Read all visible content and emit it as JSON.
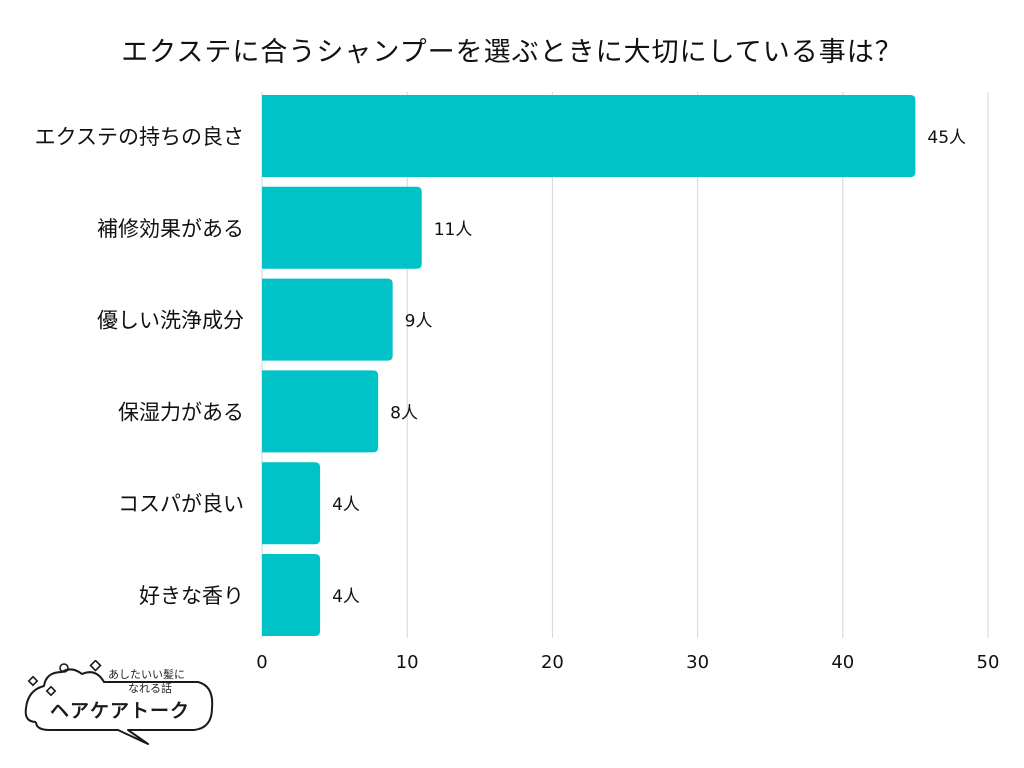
{
  "chart_data": {
    "type": "bar",
    "orientation": "horizontal",
    "title": "エクステに合うシャンプーを選ぶときに大切にしている事は？",
    "categories": [
      "エクステの持ちの良さ",
      "補修効果がある",
      "優しい洗浄成分",
      "保湿力がある",
      "コスパが良い",
      "好きな香り"
    ],
    "values": [
      45,
      11,
      9,
      8,
      4,
      4
    ],
    "value_labels": [
      "45人",
      "11人",
      "9人",
      "8人",
      "4人",
      "4人"
    ],
    "xlim": [
      0,
      50
    ],
    "xticks": [
      0,
      10,
      20,
      30,
      40,
      50
    ],
    "xtick_labels": [
      "0",
      "10",
      "20",
      "30",
      "40",
      "50"
    ],
    "grid": "vertical",
    "legend": "none",
    "bar_color": "#00c2c7",
    "grid_color": "#d6d6d6"
  },
  "logo": {
    "tagline_line1": "あしたいい髪に",
    "tagline_line2": "なれる話",
    "name": "ヘアケアトーク"
  }
}
